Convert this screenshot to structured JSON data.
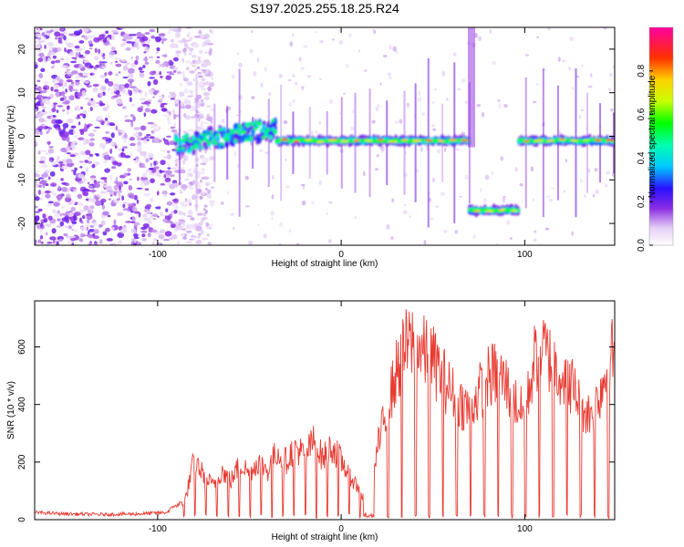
{
  "title": "S197.2025.255.18.25.R24",
  "colors": {
    "snr_line": "#e83b32",
    "axis": "#000000",
    "background": "#ffffff"
  },
  "chart_data": [
    {
      "type": "heatmap",
      "xlabel": "Height of straight line (km)",
      "ylabel": "Frequency (Hz)",
      "xlim": [
        -167,
        149
      ],
      "ylim": [
        -25,
        25
      ],
      "xticks": [
        -100,
        0,
        100
      ],
      "yticks": [
        -20,
        -10,
        0,
        10,
        20
      ],
      "colorbar": {
        "label": "Normalized spectral amplitude",
        "range": [
          0,
          1
        ],
        "ticks": [
          0.0,
          0.2,
          0.4,
          0.6,
          0.8
        ]
      },
      "features": [
        {
          "name": "noise-region",
          "x": [
            -167,
            -90
          ],
          "freq": [
            -25,
            25
          ],
          "amplitude": 0.12
        },
        {
          "name": "transition-segment",
          "x": [
            -90,
            -35
          ],
          "freq_start": -2,
          "freq_end": 2,
          "amplitude": 0.35
        },
        {
          "name": "main-line-left",
          "x": [
            -35,
            70
          ],
          "freq": -1,
          "amplitude_peak": 0.9
        },
        {
          "name": "shifted-segment",
          "x": [
            70,
            97
          ],
          "freq": -17,
          "amplitude_peak": 0.9
        },
        {
          "name": "main-line-right",
          "x": [
            97,
            149
          ],
          "freq": -1,
          "amplitude_peak": 0.9
        }
      ]
    },
    {
      "type": "line",
      "xlabel": "Height of straight line (km)",
      "ylabel": "SNR (10 * v/v)",
      "xlim": [
        -167,
        149
      ],
      "ylim": [
        0,
        760
      ],
      "xticks": [
        -100,
        0,
        100
      ],
      "yticks": [
        0,
        200,
        400,
        600
      ],
      "series": [
        {
          "name": "SNR",
          "x": [
            -167,
            -150,
            -130,
            -110,
            -95,
            -85,
            -80,
            -75,
            -70,
            -65,
            -60,
            -55,
            -50,
            -45,
            -40,
            -35,
            -30,
            -25,
            -20,
            -15,
            -10,
            -5,
            0,
            5,
            10,
            15,
            20,
            25,
            30,
            35,
            40,
            45,
            50,
            55,
            60,
            65,
            70,
            75,
            80,
            85,
            90,
            95,
            100,
            105,
            110,
            115,
            120,
            125,
            130,
            135,
            140,
            145,
            149
          ],
          "values": [
            25,
            20,
            18,
            20,
            25,
            80,
            250,
            180,
            140,
            200,
            160,
            230,
            190,
            240,
            200,
            280,
            240,
            300,
            260,
            320,
            250,
            300,
            240,
            180,
            120,
            40,
            300,
            450,
            600,
            700,
            730,
            680,
            650,
            590,
            520,
            480,
            450,
            520,
            580,
            600,
            550,
            480,
            420,
            650,
            700,
            640,
            600,
            560,
            480,
            430,
            500,
            620,
            700
          ]
        }
      ]
    }
  ]
}
